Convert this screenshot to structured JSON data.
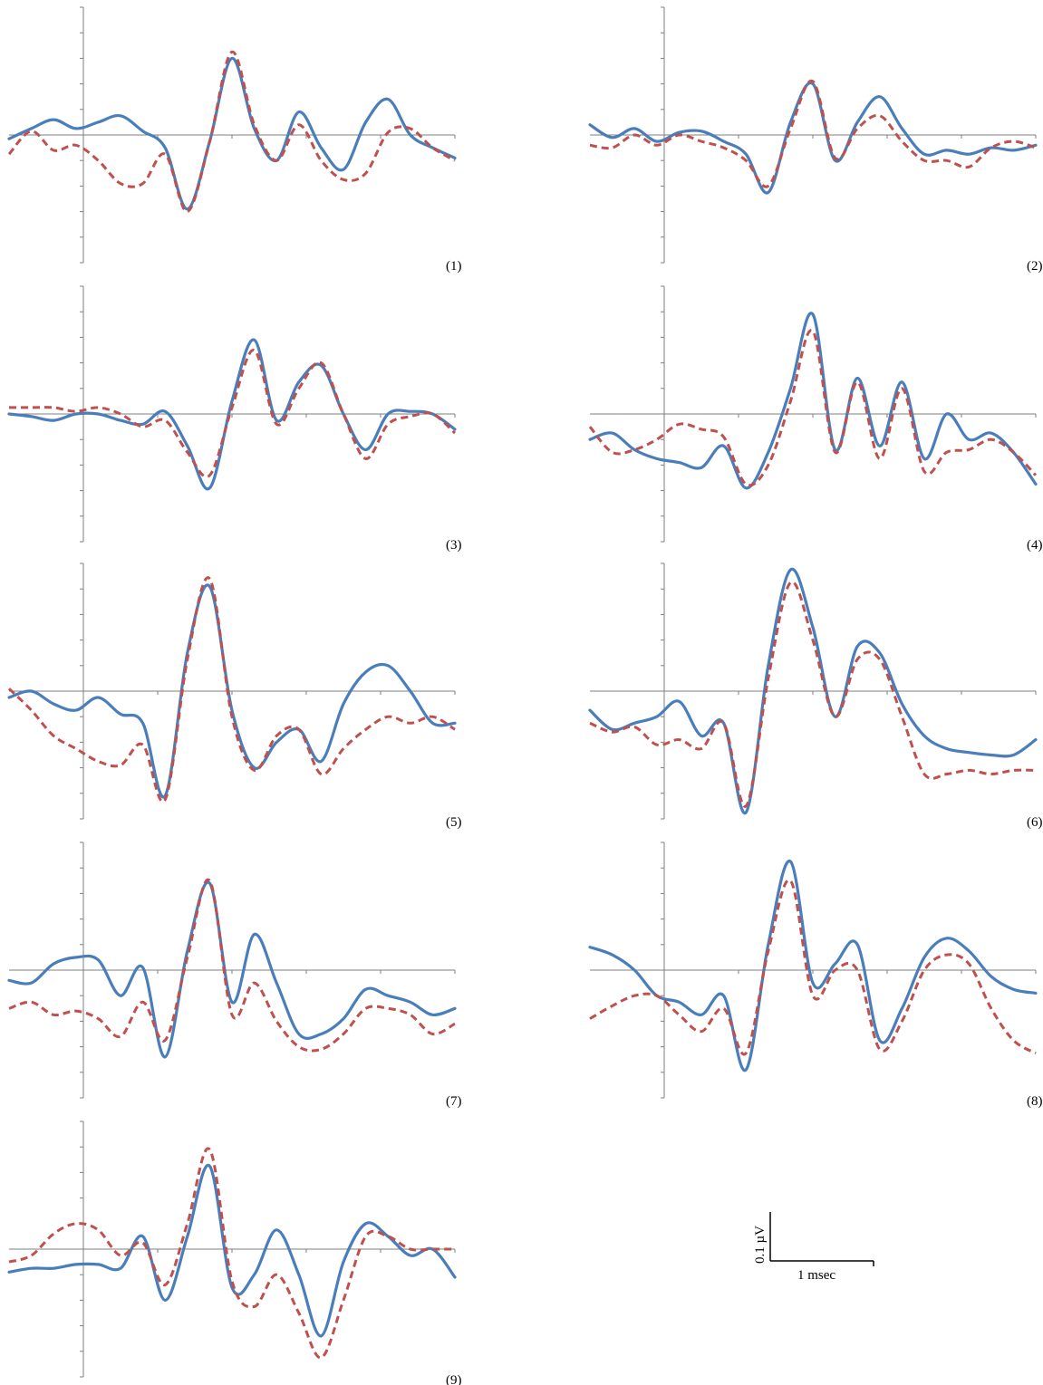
{
  "chart_data": [
    {
      "type": "line",
      "label": "(1)",
      "ylim": [
        -1,
        1
      ],
      "xlim": [
        0,
        10
      ],
      "series": [
        {
          "style": "solid",
          "color": "#4a7ebb",
          "x": [
            0,
            0.5,
            1,
            1.5,
            2,
            2.5,
            3,
            3.5,
            4,
            4.5,
            5,
            5.5,
            6,
            6.5,
            7,
            7.5,
            8,
            8.5,
            9,
            9.5,
            10
          ],
          "values": [
            -0.03,
            0.05,
            0.12,
            0.05,
            0.1,
            0.15,
            0.03,
            -0.1,
            -0.58,
            -0.05,
            0.6,
            0.05,
            -0.2,
            0.18,
            -0.1,
            -0.27,
            0.1,
            0.28,
            0,
            -0.1,
            -0.18
          ]
        },
        {
          "style": "dashed",
          "color": "#c0504d",
          "x": [
            0,
            0.5,
            1,
            1.5,
            2,
            2.5,
            3,
            3.5,
            4,
            4.5,
            5,
            5.5,
            6,
            6.5,
            7,
            7.5,
            8,
            8.5,
            9,
            9.5,
            10
          ],
          "values": [
            -0.15,
            0.03,
            -0.12,
            -0.08,
            -0.2,
            -0.38,
            -0.38,
            -0.15,
            -0.6,
            -0.05,
            0.65,
            0.08,
            -0.2,
            0.08,
            -0.2,
            -0.35,
            -0.3,
            0.02,
            0.05,
            -0.1,
            -0.2
          ]
        }
      ]
    },
    {
      "type": "line",
      "label": "(2)",
      "ylim": [
        -1,
        1
      ],
      "xlim": [
        0,
        10
      ],
      "series": [
        {
          "style": "solid",
          "color": "#4a7ebb",
          "x": [
            0,
            0.5,
            1,
            1.5,
            2,
            2.5,
            3,
            3.5,
            4,
            4.5,
            5,
            5.5,
            6,
            6.5,
            7,
            7.5,
            8,
            8.5,
            9,
            9.5,
            10
          ],
          "values": [
            0.08,
            -0.02,
            0.05,
            -0.05,
            0.02,
            0.03,
            -0.05,
            -0.15,
            -0.45,
            0.1,
            0.4,
            -0.2,
            0.1,
            0.3,
            0.05,
            -0.15,
            -0.12,
            -0.15,
            -0.1,
            -0.12,
            -0.08
          ]
        },
        {
          "style": "dashed",
          "color": "#c0504d",
          "x": [
            0,
            0.5,
            1,
            1.5,
            2,
            2.5,
            3,
            3.5,
            4,
            4.5,
            5,
            5.5,
            6,
            6.5,
            7,
            7.5,
            8,
            8.5,
            9,
            9.5,
            10
          ],
          "values": [
            -0.08,
            -0.1,
            0,
            -0.08,
            0,
            -0.05,
            -0.1,
            -0.2,
            -0.4,
            0.05,
            0.42,
            -0.18,
            0.05,
            0.15,
            -0.05,
            -0.2,
            -0.2,
            -0.25,
            -0.1,
            -0.05,
            -0.1
          ]
        }
      ]
    },
    {
      "type": "line",
      "label": "(3)",
      "ylim": [
        -1,
        1
      ],
      "xlim": [
        0,
        10
      ],
      "series": [
        {
          "style": "solid",
          "color": "#4a7ebb",
          "x": [
            0,
            0.5,
            1,
            1.5,
            2,
            2.5,
            3,
            3.5,
            4,
            4.5,
            5,
            5.5,
            6,
            6.5,
            7,
            7.5,
            8,
            8.5,
            9,
            9.5,
            10
          ],
          "values": [
            0,
            -0.02,
            -0.05,
            0,
            0,
            -0.05,
            -0.08,
            0.02,
            -0.25,
            -0.58,
            0.1,
            0.58,
            -0.05,
            0.25,
            0.38,
            0,
            -0.28,
            0,
            0.02,
            0,
            -0.12
          ]
        },
        {
          "style": "dashed",
          "color": "#c0504d",
          "x": [
            0,
            0.5,
            1,
            1.5,
            2,
            2.5,
            3,
            3.5,
            4,
            4.5,
            5,
            5.5,
            6,
            6.5,
            7,
            7.5,
            8,
            8.5,
            9,
            9.5,
            10
          ],
          "values": [
            0.05,
            0.05,
            0.05,
            0.02,
            0.05,
            0,
            -0.1,
            -0.05,
            -0.3,
            -0.48,
            0.05,
            0.5,
            -0.08,
            0.2,
            0.4,
            0,
            -0.35,
            -0.08,
            -0.02,
            0,
            -0.15
          ]
        }
      ]
    },
    {
      "type": "line",
      "label": "(4)",
      "ylim": [
        -1,
        1
      ],
      "xlim": [
        0,
        10
      ],
      "series": [
        {
          "style": "solid",
          "color": "#4a7ebb",
          "x": [
            0,
            0.5,
            1,
            1.5,
            2,
            2.5,
            3,
            3.5,
            4,
            4.5,
            5,
            5.5,
            6,
            6.5,
            7,
            7.5,
            8,
            8.5,
            9,
            9.5,
            10
          ],
          "values": [
            -0.2,
            -0.15,
            -0.28,
            -0.35,
            -0.38,
            -0.42,
            -0.25,
            -0.58,
            -0.3,
            0.2,
            0.78,
            -0.28,
            0.28,
            -0.25,
            0.25,
            -0.35,
            0,
            -0.2,
            -0.15,
            -0.3,
            -0.55
          ]
        },
        {
          "style": "dashed",
          "color": "#c0504d",
          "x": [
            0,
            0.5,
            1,
            1.5,
            2,
            2.5,
            3,
            3.5,
            4,
            4.5,
            5,
            5.5,
            6,
            6.5,
            7,
            7.5,
            8,
            8.5,
            9,
            9.5,
            10
          ],
          "values": [
            -0.1,
            -0.3,
            -0.28,
            -0.2,
            -0.08,
            -0.12,
            -0.18,
            -0.55,
            -0.4,
            0.1,
            0.65,
            -0.3,
            0.25,
            -0.35,
            0.2,
            -0.45,
            -0.3,
            -0.28,
            -0.2,
            -0.3,
            -0.48
          ]
        }
      ]
    },
    {
      "type": "line",
      "label": "(5)",
      "ylim": [
        -1,
        1
      ],
      "xlim": [
        0,
        10
      ],
      "series": [
        {
          "style": "solid",
          "color": "#4a7ebb",
          "x": [
            0,
            0.5,
            1,
            1.5,
            2,
            2.5,
            3,
            3.5,
            4,
            4.5,
            5,
            5.5,
            6,
            6.5,
            7,
            7.5,
            8,
            8.5,
            9,
            9.5,
            10
          ],
          "values": [
            -0.05,
            0,
            -0.1,
            -0.15,
            -0.05,
            -0.18,
            -0.25,
            -0.82,
            0.3,
            0.82,
            -0.15,
            -0.6,
            -0.4,
            -0.3,
            -0.55,
            -0.1,
            0.15,
            0.2,
            0,
            -0.25,
            -0.25
          ]
        },
        {
          "style": "dashed",
          "color": "#c0504d",
          "x": [
            0,
            0.5,
            1,
            1.5,
            2,
            2.5,
            3,
            3.5,
            4,
            4.5,
            5,
            5.5,
            6,
            6.5,
            7,
            7.5,
            8,
            8.5,
            9,
            9.5,
            10
          ],
          "values": [
            0.02,
            -0.15,
            -0.35,
            -0.45,
            -0.55,
            -0.58,
            -0.42,
            -0.85,
            0.25,
            0.88,
            -0.2,
            -0.62,
            -0.35,
            -0.3,
            -0.65,
            -0.45,
            -0.3,
            -0.2,
            -0.25,
            -0.2,
            -0.3
          ]
        }
      ]
    },
    {
      "type": "line",
      "label": "(6)",
      "ylim": [
        -1,
        1
      ],
      "xlim": [
        0,
        10
      ],
      "series": [
        {
          "style": "solid",
          "color": "#4a7ebb",
          "x": [
            0,
            0.5,
            1,
            1.5,
            2,
            2.5,
            3,
            3.5,
            4,
            4.5,
            5,
            5.5,
            6,
            6.5,
            7,
            7.5,
            8,
            8.5,
            9,
            9.5,
            10
          ],
          "values": [
            -0.15,
            -0.3,
            -0.25,
            -0.2,
            -0.08,
            -0.35,
            -0.25,
            -0.95,
            0.2,
            0.95,
            0.5,
            -0.2,
            0.35,
            0.3,
            -0.1,
            -0.35,
            -0.45,
            -0.48,
            -0.5,
            -0.5,
            -0.38
          ]
        },
        {
          "style": "dashed",
          "color": "#c0504d",
          "x": [
            0,
            0.5,
            1,
            1.5,
            2,
            2.5,
            3,
            3.5,
            4,
            4.5,
            5,
            5.5,
            6,
            6.5,
            7,
            7.5,
            8,
            8.5,
            9,
            9.5,
            10
          ],
          "values": [
            -0.25,
            -0.32,
            -0.28,
            -0.42,
            -0.38,
            -0.45,
            -0.25,
            -0.9,
            0.1,
            0.85,
            0.4,
            -0.2,
            0.25,
            0.25,
            -0.2,
            -0.65,
            -0.65,
            -0.62,
            -0.65,
            -0.62,
            -0.62
          ]
        }
      ]
    },
    {
      "type": "line",
      "label": "(7)",
      "ylim": [
        -1,
        1
      ],
      "xlim": [
        0,
        10
      ],
      "series": [
        {
          "style": "solid",
          "color": "#4a7ebb",
          "x": [
            0,
            0.5,
            1,
            1.5,
            2,
            2.5,
            3,
            3.5,
            4,
            4.5,
            5,
            5.5,
            6,
            6.5,
            7,
            7.5,
            8,
            8.5,
            9,
            9.5,
            10
          ],
          "values": [
            -0.08,
            -0.1,
            0.05,
            0.1,
            0.08,
            -0.2,
            0.02,
            -0.68,
            0.15,
            0.68,
            -0.25,
            0.28,
            -0.1,
            -0.5,
            -0.5,
            -0.38,
            -0.15,
            -0.2,
            -0.25,
            -0.35,
            -0.3
          ]
        },
        {
          "style": "dashed",
          "color": "#c0504d",
          "x": [
            0,
            0.5,
            1,
            1.5,
            2,
            2.5,
            3,
            3.5,
            4,
            4.5,
            5,
            5.5,
            6,
            6.5,
            7,
            7.5,
            8,
            8.5,
            9,
            9.5,
            10
          ],
          "values": [
            -0.3,
            -0.25,
            -0.35,
            -0.32,
            -0.38,
            -0.52,
            -0.25,
            -0.55,
            0.1,
            0.7,
            -0.35,
            -0.1,
            -0.4,
            -0.6,
            -0.62,
            -0.5,
            -0.3,
            -0.3,
            -0.35,
            -0.5,
            -0.42
          ]
        }
      ]
    },
    {
      "type": "line",
      "label": "(8)",
      "ylim": [
        -1,
        1
      ],
      "xlim": [
        0,
        10
      ],
      "series": [
        {
          "style": "solid",
          "color": "#4a7ebb",
          "x": [
            0,
            0.5,
            1,
            1.5,
            2,
            2.5,
            3,
            3.5,
            4,
            4.5,
            5,
            5.5,
            6,
            6.5,
            7,
            7.5,
            8,
            8.5,
            9,
            9.5,
            10
          ],
          "values": [
            0.18,
            0.12,
            0,
            -0.2,
            -0.25,
            -0.35,
            -0.2,
            -0.78,
            0.2,
            0.85,
            -0.1,
            0.05,
            0.2,
            -0.55,
            -0.3,
            0.1,
            0.25,
            0.15,
            -0.05,
            -0.15,
            -0.18
          ]
        },
        {
          "style": "dashed",
          "color": "#c0504d",
          "x": [
            0,
            0.5,
            1,
            1.5,
            2,
            2.5,
            3,
            3.5,
            4,
            4.5,
            5,
            5.5,
            6,
            6.5,
            7,
            7.5,
            8,
            8.5,
            9,
            9.5,
            10
          ],
          "values": [
            -0.38,
            -0.28,
            -0.2,
            -0.2,
            -0.35,
            -0.48,
            -0.3,
            -0.65,
            0.15,
            0.7,
            -0.2,
            0,
            0,
            -0.62,
            -0.4,
            0,
            0.12,
            0.05,
            -0.3,
            -0.55,
            -0.65
          ]
        }
      ]
    },
    {
      "type": "line",
      "label": "(9)",
      "ylim": [
        -1,
        1
      ],
      "xlim": [
        0,
        10
      ],
      "series": [
        {
          "style": "solid",
          "color": "#4a7ebb",
          "x": [
            0,
            0.5,
            1,
            1.5,
            2,
            2.5,
            3,
            3.5,
            4,
            4.5,
            5,
            5.5,
            6,
            6.5,
            7,
            7.5,
            8,
            8.5,
            9,
            9.5,
            10
          ],
          "values": [
            -0.18,
            -0.15,
            -0.15,
            -0.12,
            -0.12,
            -0.15,
            0.1,
            -0.4,
            0.1,
            0.65,
            -0.3,
            -0.2,
            0.15,
            -0.2,
            -0.68,
            -0.1,
            0.2,
            0.1,
            -0.05,
            0,
            -0.22
          ]
        },
        {
          "style": "dashed",
          "color": "#c0504d",
          "x": [
            0,
            0.5,
            1,
            1.5,
            2,
            2.5,
            3,
            3.5,
            4,
            4.5,
            5,
            5.5,
            6,
            6.5,
            7,
            7.5,
            8,
            8.5,
            9,
            9.5,
            10
          ],
          "values": [
            -0.1,
            -0.05,
            0.12,
            0.2,
            0.15,
            -0.05,
            0.05,
            -0.28,
            0.2,
            0.78,
            -0.25,
            -0.45,
            -0.2,
            -0.5,
            -0.85,
            -0.4,
            0.1,
            0.1,
            0,
            0,
            0
          ]
        }
      ]
    }
  ],
  "scale_bar": {
    "vertical_label": "0.1 µV",
    "horizontal_label": "1 msec"
  },
  "colors": {
    "solid": "#4a7ebb",
    "dashed": "#c0504d"
  }
}
